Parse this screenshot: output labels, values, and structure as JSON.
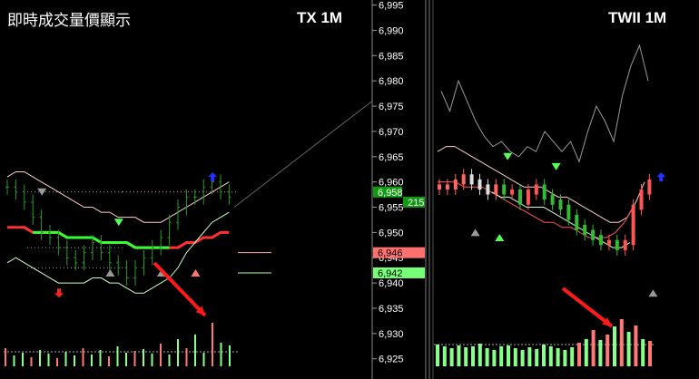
{
  "header": {
    "title": "即時成交量價顯示",
    "left_symbol": "TX 1M",
    "right_symbol": "TWII 1M"
  },
  "chart_data": [
    {
      "type": "candlestick",
      "panel": "left",
      "symbol": "TX 1M",
      "title": "即時成交量價顯示",
      "price_axis": {
        "ylim": [
          6921,
          6996
        ],
        "ticks": [
          6925,
          6930,
          6935,
          6940,
          6945,
          6950,
          6955,
          6960,
          6965,
          6970,
          6975,
          6980,
          6985,
          6990,
          6995
        ],
        "tick_labels": [
          "6,925",
          "6,930",
          "6,935",
          "6,940",
          "6,945",
          "6,950",
          "6,955",
          "6,960",
          "6,965",
          "6,970",
          "6,975",
          "6,980",
          "6,985",
          "6,990",
          "6,995"
        ]
      },
      "price_tags": [
        {
          "value": 6946,
          "label": "6,946",
          "color": "#ff7070"
        },
        {
          "value": 6942,
          "label": "6,942",
          "color": "#77ff77"
        }
      ],
      "close_series": [
        6959,
        6958,
        6956,
        6953,
        6950,
        6949,
        6947,
        6945,
        6944,
        6946,
        6948,
        6946,
        6944,
        6943,
        6941,
        6943,
        6945,
        6947,
        6949,
        6952,
        6955,
        6957,
        6957,
        6959,
        6960,
        6958,
        6957
      ],
      "indicator_lines": [
        {
          "name": "center",
          "color": "#ff3030",
          "values": [
            6951,
            6951,
            6951,
            6950,
            6950,
            6950,
            6950,
            6949,
            6949,
            6949,
            6949,
            6948,
            6948,
            6948,
            6948,
            6947,
            6947,
            6947,
            6947,
            6947,
            6947,
            6948,
            6948,
            6949,
            6949,
            6950,
            6950
          ]
        },
        {
          "name": "upper",
          "color": "#ffcccc",
          "values": [
            6961,
            6962,
            6962,
            6961,
            6960,
            6959,
            6958,
            6957,
            6956,
            6955,
            6955,
            6954,
            6954,
            6953,
            6953,
            6953,
            6952,
            6952,
            6952,
            6953,
            6954,
            6955,
            6956,
            6957,
            6958,
            6959,
            6960
          ]
        },
        {
          "name": "lower",
          "color": "#ccffcc",
          "values": [
            6944,
            6945,
            6944,
            6943,
            6942,
            6941,
            6940,
            6940,
            6940,
            6940,
            6941,
            6941,
            6940,
            6940,
            6939,
            6938,
            6938,
            6939,
            6940,
            6941,
            6943,
            6946,
            6948,
            6950,
            6952,
            6953,
            6954
          ]
        }
      ],
      "volume": [
        20,
        12,
        15,
        10,
        18,
        14,
        9,
        16,
        12,
        20,
        13,
        18,
        11,
        22,
        15,
        17,
        19,
        14,
        25,
        13,
        30,
        20,
        35,
        15,
        48,
        26,
        23
      ],
      "markers": [
        {
          "index": 3,
          "value": 6958,
          "shape": "triangle-down",
          "color": "#999999"
        },
        {
          "index": 12,
          "value": 6952,
          "shape": "triangle-down",
          "color": "#55ff55"
        },
        {
          "index": 11,
          "value": 6942,
          "shape": "triangle-up",
          "color": "#999999"
        },
        {
          "index": 17,
          "value": 6942,
          "shape": "triangle-up",
          "color": "#999999"
        },
        {
          "index": 21,
          "value": 6942,
          "shape": "triangle-up",
          "color": "#ff7777"
        },
        {
          "index": 23,
          "value": 6961,
          "shape": "arrow-up",
          "color": "#2233ff"
        },
        {
          "index": 5,
          "value": 6938,
          "shape": "arrow-down",
          "color": "#ff2222"
        }
      ]
    },
    {
      "type": "candlestick",
      "panel": "right",
      "symbol": "TWII 1M",
      "price_tags": [
        {
          "value": 6958,
          "label": "6,958",
          "color": "#119911"
        },
        {
          "value": 6956,
          "label": "215",
          "color": "#119911"
        }
      ],
      "close_series": [
        6959,
        6959,
        6960,
        6961,
        6960,
        6959,
        6958,
        6959,
        6958,
        6958,
        6956,
        6958,
        6959,
        6957,
        6956,
        6955,
        6953,
        6951,
        6950,
        6949,
        6948,
        6948,
        6947,
        6948,
        6955,
        6958,
        6960
      ],
      "reference_line_values": [
        6978,
        6974,
        6980,
        6976,
        6972,
        6969,
        6967,
        6968,
        6966,
        6965,
        6967,
        6966,
        6970,
        6968,
        6966,
        6968,
        6964,
        6970,
        6975,
        6972,
        6968,
        6977,
        6983,
        6987,
        6980
      ],
      "indicator_lines": [
        {
          "name": "upper",
          "color": "#ffcccc",
          "values": [
            6966,
            6967,
            6967,
            6966,
            6965,
            6964,
            6963,
            6962,
            6961,
            6960,
            6959,
            6959,
            6959,
            6958,
            6957,
            6957,
            6956,
            6955,
            6954,
            6953,
            6952,
            6952,
            6953,
            6956,
            6960
          ]
        },
        {
          "name": "middle",
          "color": "#ff5555",
          "values": [
            6960,
            6960,
            6960,
            6959,
            6959,
            6959,
            6958,
            6957,
            6956,
            6955,
            6954,
            6953,
            6952,
            6952,
            6951,
            6951,
            6950,
            6949,
            6949,
            6949,
            6950,
            6952,
            6955
          ]
        },
        {
          "name": "lower",
          "color": "#ccffcc",
          "values": [
            6958,
            6957,
            6957,
            6956,
            6955,
            6955,
            6955,
            6954,
            6953,
            6952,
            6951,
            6950,
            6949,
            6948,
            6947,
            6947,
            6948
          ]
        }
      ],
      "volume": [
        24,
        22,
        20,
        23,
        21,
        22,
        25,
        20,
        18,
        22,
        23,
        20,
        18,
        21,
        19,
        24,
        22,
        20,
        18,
        21,
        26,
        30,
        40,
        29,
        35,
        44,
        52,
        38,
        45,
        30,
        28
      ],
      "markers": [
        {
          "index": 8,
          "value": 6965,
          "shape": "triangle-down",
          "color": "#55ff55"
        },
        {
          "index": 14,
          "value": 6963,
          "shape": "triangle-down",
          "color": "#55ff55"
        },
        {
          "index": 4,
          "value": 6950,
          "shape": "triangle-up",
          "color": "#999999"
        },
        {
          "index": 7,
          "value": 6949,
          "shape": "triangle-up",
          "color": "#55ff55"
        },
        {
          "index": 26,
          "value": 6938,
          "shape": "triangle-up",
          "color": "#999999"
        },
        {
          "index": 27,
          "value": 6961,
          "shape": "arrow-up",
          "color": "#2233ff"
        }
      ]
    }
  ],
  "colors": {
    "up": "#ff5555",
    "down": "#33bb33",
    "axis_text": "#ffffff",
    "annotation_arrow": "#ff1a1a"
  }
}
